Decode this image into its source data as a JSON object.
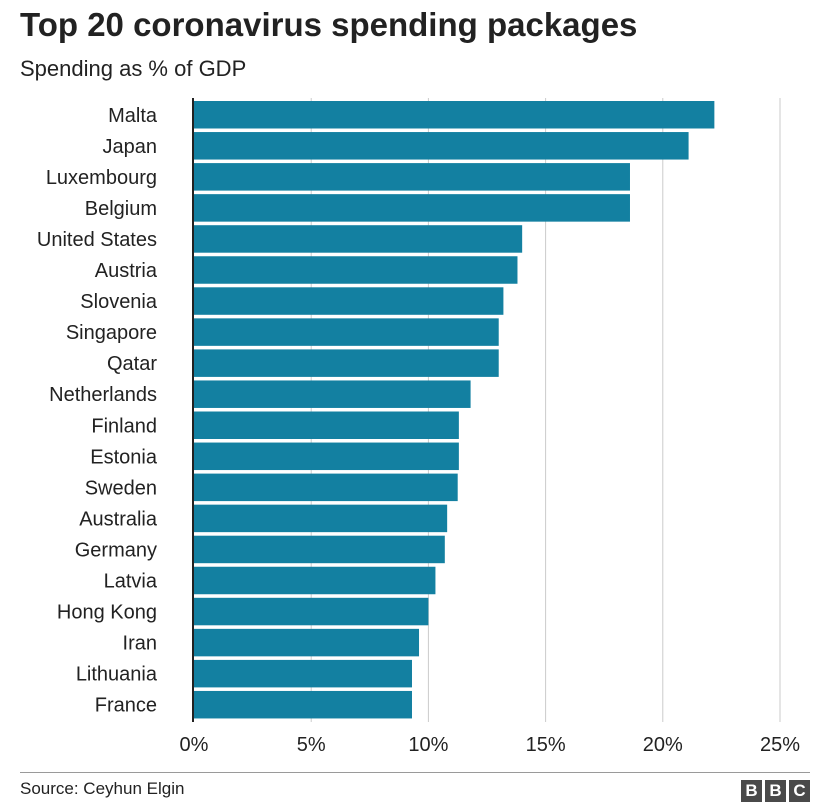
{
  "chart_data": {
    "type": "bar",
    "orientation": "horizontal",
    "title": "Top 20 coronavirus spending packages",
    "subtitle": "Spending as % of GDP",
    "categories": [
      "Malta",
      "Japan",
      "Luxembourg",
      "Belgium",
      "United States",
      "Austria",
      "Slovenia",
      "Singapore",
      "Qatar",
      "Netherlands",
      "Finland",
      "Estonia",
      "Sweden",
      "Australia",
      "Germany",
      "Latvia",
      "Hong Kong",
      "Iran",
      "Lithuania",
      "France"
    ],
    "values": [
      22.2,
      21.1,
      18.6,
      18.6,
      14.0,
      13.8,
      13.2,
      13.0,
      13.0,
      11.8,
      11.3,
      11.3,
      11.25,
      10.8,
      10.7,
      10.3,
      10.0,
      9.6,
      9.3,
      9.3
    ],
    "xlim": [
      0,
      25
    ],
    "xticks": [
      0,
      5,
      10,
      15,
      20,
      25
    ],
    "xtick_labels": [
      "0%",
      "5%",
      "10%",
      "15%",
      "20%",
      "25%"
    ],
    "xlabel": "",
    "ylabel": "",
    "grid": true,
    "bar_color": "#1380a1",
    "grid_color": "#cbcbcb",
    "axis_color": "#222222"
  },
  "footer": {
    "source": "Source: Ceyhun Elgin",
    "logo_letters": [
      "B",
      "B",
      "C"
    ]
  }
}
